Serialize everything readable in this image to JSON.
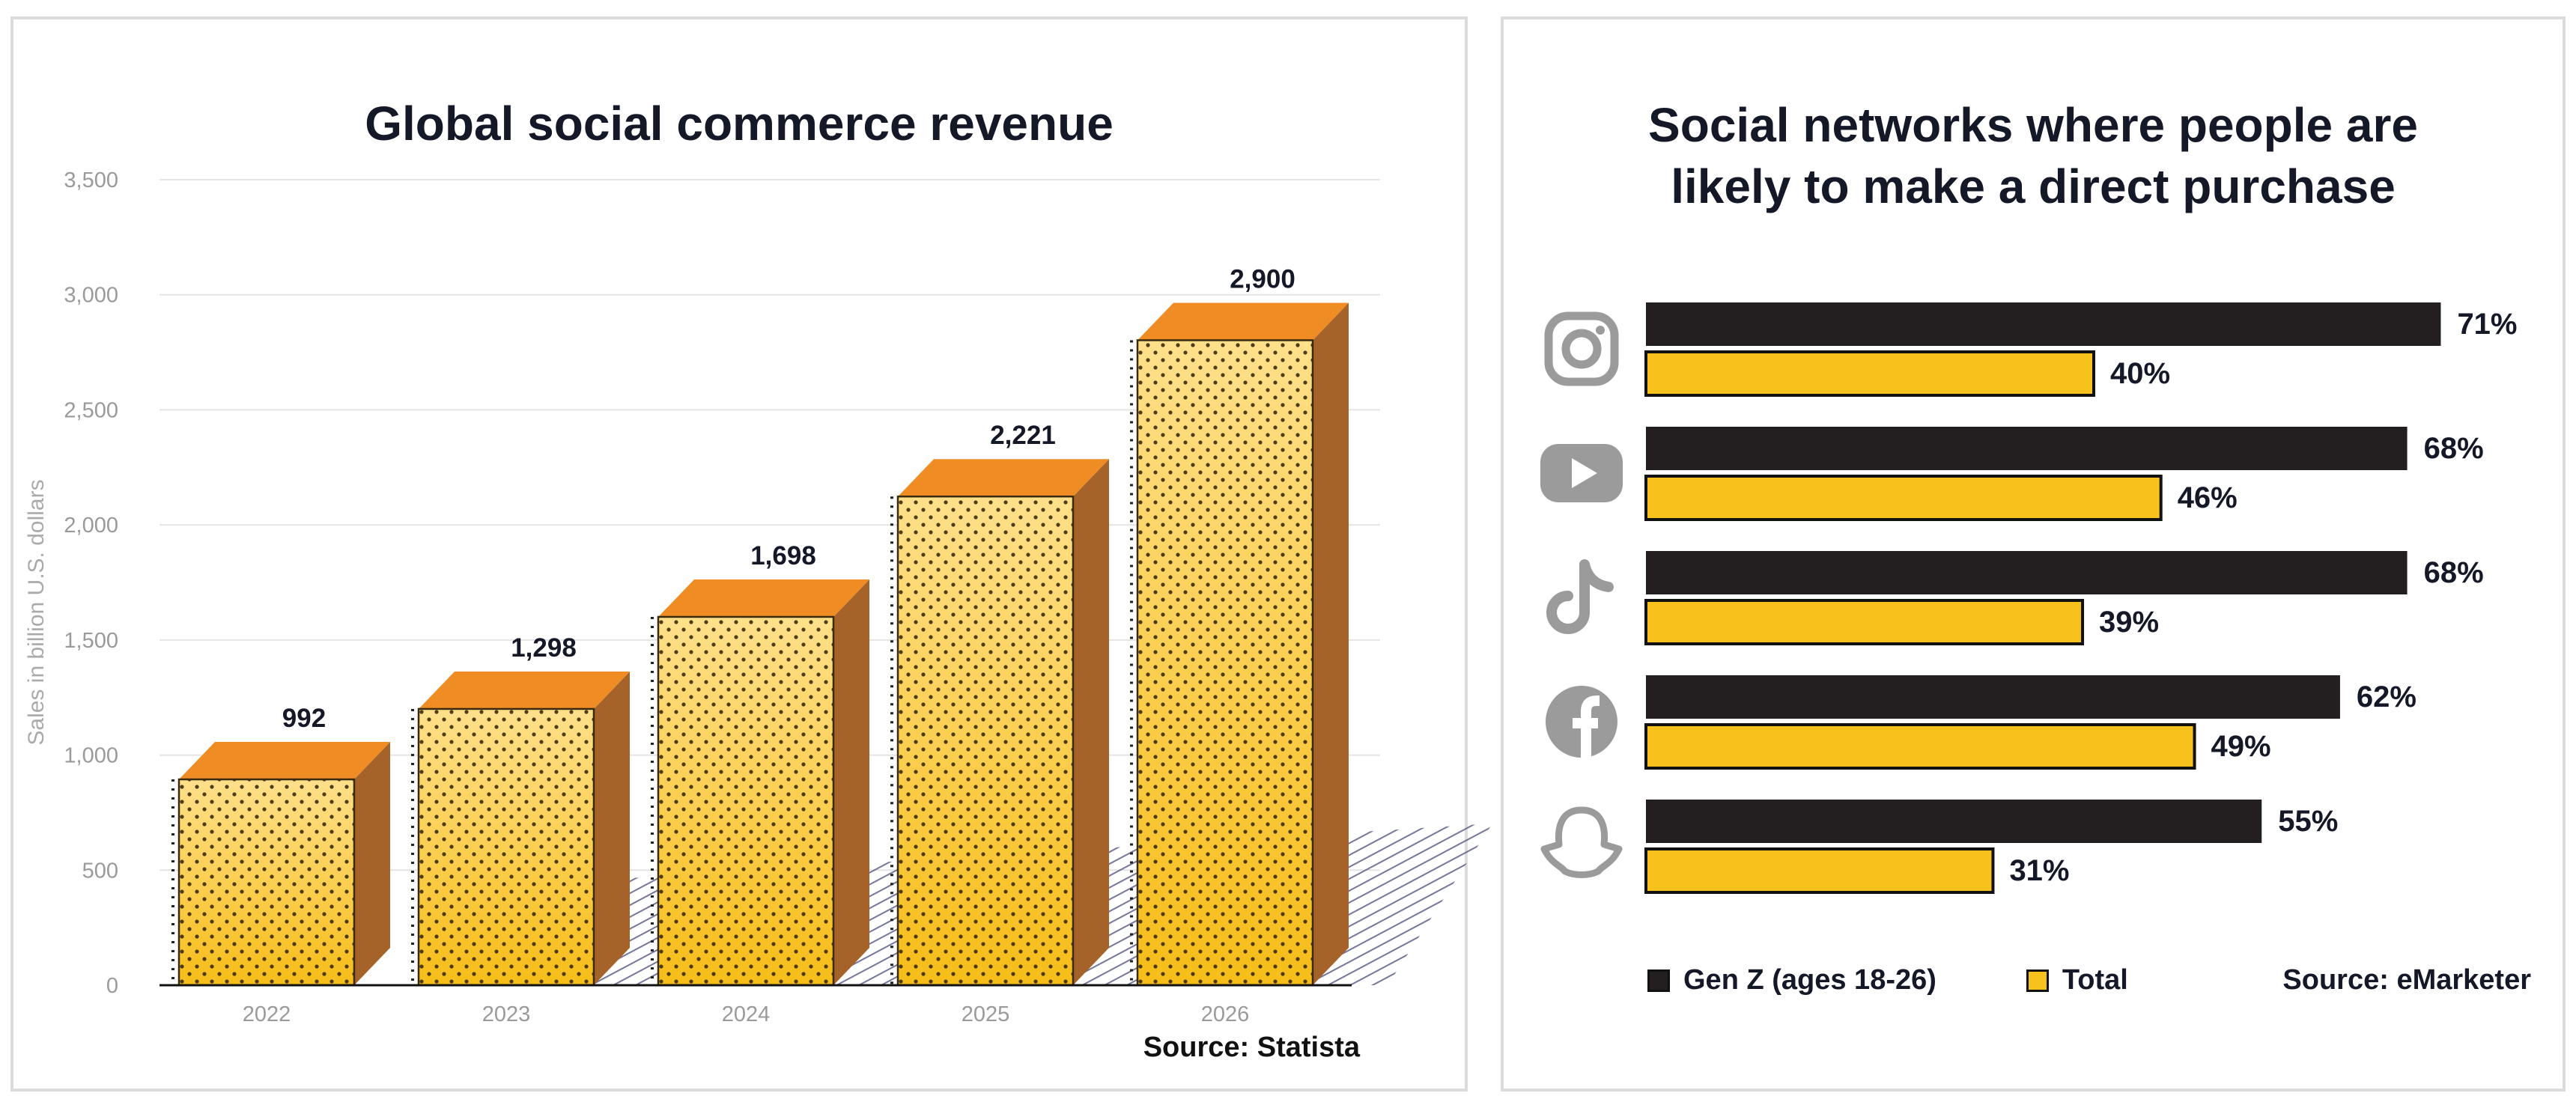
{
  "colors": {
    "bar_front_top": "#ffe08a",
    "bar_front_bottom": "#f6bd18",
    "bar_top_face": "#ef8d24",
    "bar_side_face": "#a5632a",
    "dot_color": "#3a2a10",
    "genz_color": "#231f20",
    "total_color": "#f8c21c",
    "icon_color": "#9b9b9b"
  },
  "left_chart": {
    "title": "Global social commerce revenue",
    "source": "Source: Statista",
    "chart_data": {
      "type": "bar",
      "title": "Global social commerce revenue",
      "xlabel": "",
      "ylabel": "Sales in billion U.S. dollars",
      "ylim": [
        0,
        3500
      ],
      "yticks": [
        0,
        500,
        1000,
        1500,
        2000,
        2500,
        3000,
        3500
      ],
      "ytick_labels": [
        "0",
        "500",
        "1,000",
        "1,500",
        "2,000",
        "2,500",
        "3,000",
        "3,500"
      ],
      "categories": [
        "2022",
        "2023",
        "2024",
        "2025",
        "2026"
      ],
      "values": [
        992,
        1298,
        1698,
        2221,
        2900
      ],
      "value_labels": [
        "992",
        "1,298",
        "1,698",
        "2,221",
        "2,900"
      ],
      "grid": true
    }
  },
  "right_chart": {
    "title_line1": "Social networks where people are",
    "title_line2": "likely to make a direct purchase",
    "source": "Source: eMarketer",
    "chart_data": {
      "type": "bar",
      "orientation": "horizontal",
      "title": "Social networks where people are likely to make a direct purchase",
      "categories": [
        "Instagram",
        "YouTube",
        "TikTok",
        "Facebook",
        "Snapchat"
      ],
      "category_icons": [
        "instagram-icon",
        "youtube-icon",
        "tiktok-icon",
        "facebook-icon",
        "snapchat-icon"
      ],
      "xlim": [
        0,
        100
      ],
      "series": [
        {
          "name": "Gen Z (ages 18-26)",
          "values": [
            71,
            68,
            68,
            62,
            55
          ],
          "labels": [
            "71%",
            "68%",
            "68%",
            "62%",
            "55%"
          ]
        },
        {
          "name": "Total",
          "values": [
            40,
            46,
            39,
            49,
            31
          ],
          "labels": [
            "40%",
            "46%",
            "39%",
            "49%",
            "31%"
          ]
        }
      ],
      "legend": [
        "Gen Z (ages 18-26)",
        "Total"
      ],
      "legend_position": "bottom"
    }
  }
}
